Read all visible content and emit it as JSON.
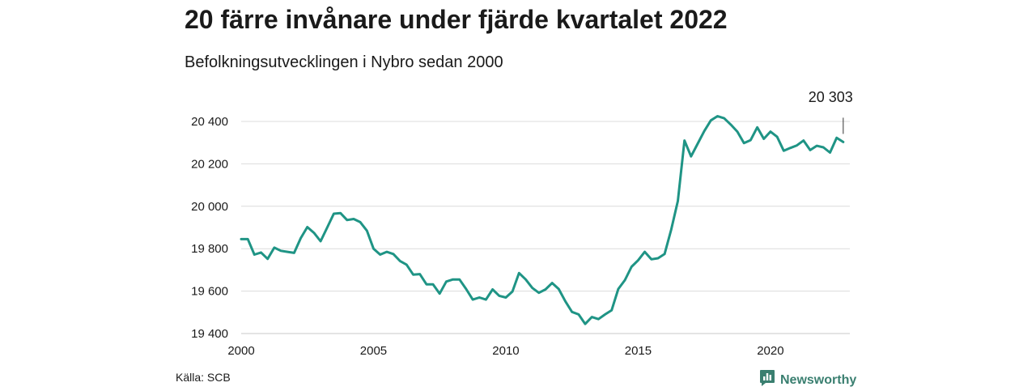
{
  "header": {
    "title": "20 färre invånare under fjärde kvartalet 2022",
    "subtitle": "Befolkningsutvecklingen i Nybro sedan 2000"
  },
  "footer": {
    "source": "Källa: SCB",
    "brand": "Newsworthy",
    "brand_icon": "bar-chart-logo-icon",
    "brand_color": "#3a7f70"
  },
  "chart_data": {
    "type": "line",
    "title": "20 färre invånare under fjärde kvartalet 2022",
    "subtitle": "Befolkningsutvecklingen i Nybro sedan 2000",
    "xlabel": "",
    "ylabel": "",
    "xlim": [
      2000,
      2023
    ],
    "ylim": [
      19400,
      20450
    ],
    "x_ticks": [
      {
        "value": 2000,
        "label": "2000"
      },
      {
        "value": 2005,
        "label": "2005"
      },
      {
        "value": 2010,
        "label": "2010"
      },
      {
        "value": 2015,
        "label": "2015"
      },
      {
        "value": 2020,
        "label": "2020"
      }
    ],
    "y_ticks": [
      {
        "value": 19400,
        "label": "19 400"
      },
      {
        "value": 19600,
        "label": "19 600"
      },
      {
        "value": 19800,
        "label": "19 800"
      },
      {
        "value": 20000,
        "label": "20 000"
      },
      {
        "value": 20200,
        "label": "20 200"
      },
      {
        "value": 20400,
        "label": "20 400"
      }
    ],
    "grid": "horizontal",
    "line_color": "#1f9485",
    "annotation": {
      "label": "20 303",
      "x": 2022.75,
      "y": 20303
    },
    "series": [
      {
        "x": [
          2000,
          2000.25,
          2000.5,
          2000.75,
          2001,
          2001.25,
          2001.5,
          2001.75,
          2002,
          2002.25,
          2002.5,
          2002.75,
          2003,
          2003.25,
          2003.5,
          2003.75,
          2004,
          2004.25,
          2004.5,
          2004.75,
          2005,
          2005.25,
          2005.5,
          2005.75,
          2006,
          2006.25,
          2006.5,
          2006.75,
          2007,
          2007.25,
          2007.5,
          2007.75,
          2008,
          2008.25,
          2008.5,
          2008.75,
          2009,
          2009.25,
          2009.5,
          2009.75,
          2010,
          2010.25,
          2010.5,
          2010.75,
          2011,
          2011.25,
          2011.5,
          2011.75,
          2012,
          2012.25,
          2012.5,
          2012.75,
          2013,
          2013.25,
          2013.5,
          2013.75,
          2014,
          2014.25,
          2014.5,
          2014.75,
          2015,
          2015.25,
          2015.5,
          2015.75,
          2016,
          2016.25,
          2016.5,
          2016.75,
          2017,
          2017.25,
          2017.5,
          2017.75,
          2018,
          2018.25,
          2018.5,
          2018.75,
          2019,
          2019.25,
          2019.5,
          2019.75,
          2020,
          2020.25,
          2020.5,
          2020.75,
          2021,
          2021.25,
          2021.5,
          2021.75,
          2022,
          2022.25,
          2022.5,
          2022.75
        ],
        "values": [
          19845,
          19845,
          19772,
          19782,
          19752,
          19805,
          19790,
          19785,
          19780,
          19850,
          19902,
          19875,
          19835,
          19900,
          19965,
          19968,
          19935,
          19940,
          19925,
          19885,
          19800,
          19772,
          19785,
          19775,
          19742,
          19725,
          19678,
          19680,
          19632,
          19632,
          19588,
          19645,
          19655,
          19655,
          19610,
          19560,
          19570,
          19560,
          19608,
          19578,
          19570,
          19598,
          19685,
          19655,
          19615,
          19592,
          19608,
          19638,
          19610,
          19552,
          19502,
          19490,
          19445,
          19478,
          19468,
          19490,
          19510,
          19610,
          19652,
          19715,
          19745,
          19785,
          19750,
          19755,
          19775,
          19890,
          20025,
          20310,
          20235,
          20295,
          20355,
          20405,
          20425,
          20415,
          20385,
          20352,
          20298,
          20312,
          20372,
          20318,
          20352,
          20328,
          20262,
          20275,
          20287,
          20310,
          20265,
          20285,
          20278,
          20253,
          20323,
          20303
        ]
      }
    ]
  }
}
